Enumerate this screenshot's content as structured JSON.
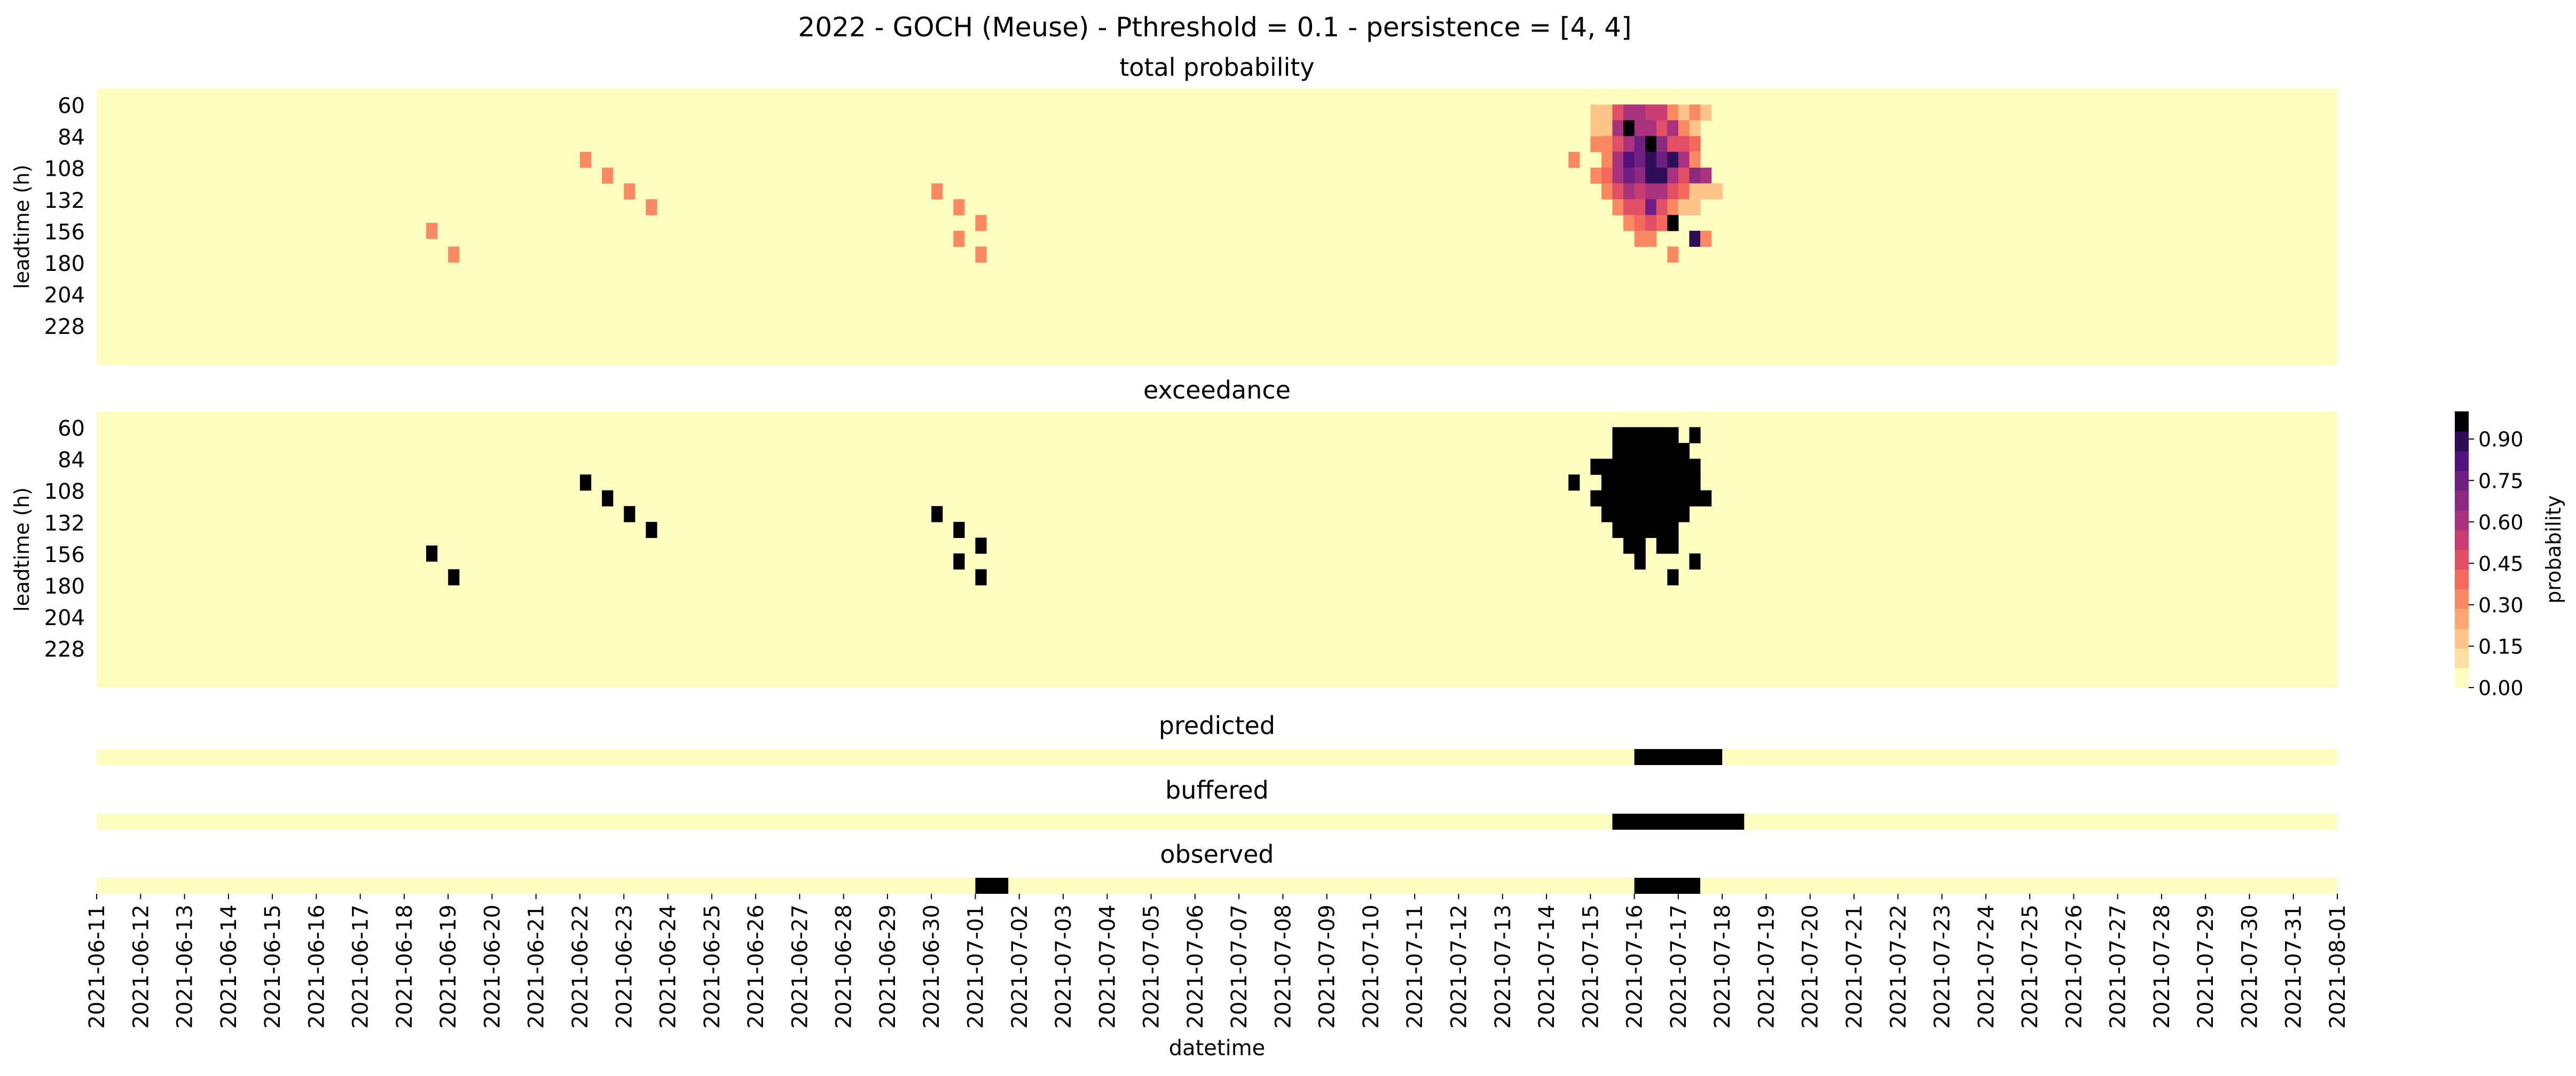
{
  "chart_data": {
    "type": "heatmap",
    "suptitle": "2022 - GOCH (Meuse) - Pthreshold = 0.1 - persistence = [4, 4]",
    "xlabel": "datetime",
    "ylabel": "leadtime (h)",
    "x_ticks": [
      "2021-06-11",
      "2021-06-12",
      "2021-06-13",
      "2021-06-14",
      "2021-06-15",
      "2021-06-16",
      "2021-06-17",
      "2021-06-18",
      "2021-06-19",
      "2021-06-20",
      "2021-06-21",
      "2021-06-22",
      "2021-06-23",
      "2021-06-24",
      "2021-06-25",
      "2021-06-26",
      "2021-06-27",
      "2021-06-28",
      "2021-06-29",
      "2021-06-30",
      "2021-07-01",
      "2021-07-02",
      "2021-07-03",
      "2021-07-04",
      "2021-07-05",
      "2021-07-06",
      "2021-07-07",
      "2021-07-08",
      "2021-07-09",
      "2021-07-10",
      "2021-07-11",
      "2021-07-12",
      "2021-07-13",
      "2021-07-14",
      "2021-07-15",
      "2021-07-16",
      "2021-07-17",
      "2021-07-18",
      "2021-07-19",
      "2021-07-20",
      "2021-07-21",
      "2021-07-22",
      "2021-07-23",
      "2021-07-24",
      "2021-07-25",
      "2021-07-26",
      "2021-07-27",
      "2021-07-28",
      "2021-07-29",
      "2021-07-30",
      "2021-07-31",
      "2021-08-01"
    ],
    "y_ticks": [
      "60",
      "84",
      "108",
      "132",
      "156",
      "180",
      "204",
      "228"
    ],
    "colors": {
      "background": "#fcfdbf",
      "exceed": "#000000",
      "scale": [
        "#fcfdbf",
        "#fde0a1",
        "#fec488",
        "#fea772",
        "#fc8961",
        "#f4695c",
        "#e24f64",
        "#c83e73",
        "#a8327d",
        "#8c2981",
        "#6e1f81",
        "#51127c",
        "#2e0e57",
        "#000004"
      ]
    },
    "colorbar": {
      "label": "probability",
      "ticks": [
        "0.00",
        "0.15",
        "0.30",
        "0.45",
        "0.60",
        "0.75",
        "0.90"
      ],
      "range": [
        0,
        1
      ]
    },
    "panels": [
      {
        "title": "total probability",
        "kind": "probability",
        "cells": [
          [
            "2021-06-18 12:00",
            150,
            0.3
          ],
          [
            "2021-06-19 00:00",
            168,
            0.3
          ],
          [
            "2021-06-22 00:00",
            96,
            0.3
          ],
          [
            "2021-06-22 12:00",
            108,
            0.3
          ],
          [
            "2021-06-23 00:00",
            120,
            0.3
          ],
          [
            "2021-06-23 12:00",
            132,
            0.3
          ],
          [
            "2021-06-30 00:00",
            120,
            0.3
          ],
          [
            "2021-06-30 12:00",
            132,
            0.3
          ],
          [
            "2021-06-30 12:00",
            156,
            0.3
          ],
          [
            "2021-07-01 00:00",
            144,
            0.3
          ],
          [
            "2021-07-01 00:00",
            168,
            0.3
          ],
          [
            "2021-07-14 12:00",
            96,
            0.3
          ],
          [
            "2021-07-15 00:00",
            84,
            0.3
          ],
          [
            "2021-07-15 00:00",
            108,
            0.3
          ],
          [
            "2021-07-15 00:00",
            60,
            0.1
          ],
          [
            "2021-07-15 00:00",
            72,
            0.1
          ],
          [
            "2021-07-15 06:00",
            60,
            0.12
          ],
          [
            "2021-07-15 06:00",
            72,
            0.15
          ],
          [
            "2021-07-15 06:00",
            84,
            0.3
          ],
          [
            "2021-07-15 06:00",
            96,
            0.3
          ],
          [
            "2021-07-15 06:00",
            108,
            0.35
          ],
          [
            "2021-07-15 06:00",
            120,
            0.3
          ],
          [
            "2021-07-15 12:00",
            60,
            0.45
          ],
          [
            "2021-07-15 12:00",
            72,
            0.55
          ],
          [
            "2021-07-15 12:00",
            84,
            0.45
          ],
          [
            "2021-07-15 12:00",
            96,
            0.6
          ],
          [
            "2021-07-15 12:00",
            108,
            0.55
          ],
          [
            "2021-07-15 12:00",
            120,
            0.4
          ],
          [
            "2021-07-15 12:00",
            132,
            0.3
          ],
          [
            "2021-07-15 18:00",
            60,
            0.6
          ],
          [
            "2021-07-15 18:00",
            72,
            0.95
          ],
          [
            "2021-07-15 18:00",
            84,
            0.6
          ],
          [
            "2021-07-15 18:00",
            96,
            0.8
          ],
          [
            "2021-07-15 18:00",
            108,
            0.75
          ],
          [
            "2021-07-15 18:00",
            120,
            0.6
          ],
          [
            "2021-07-15 18:00",
            132,
            0.4
          ],
          [
            "2021-07-15 18:00",
            144,
            0.3
          ],
          [
            "2021-07-16 00:00",
            60,
            0.55
          ],
          [
            "2021-07-16 00:00",
            72,
            0.6
          ],
          [
            "2021-07-16 00:00",
            84,
            0.7
          ],
          [
            "2021-07-16 00:00",
            96,
            0.75
          ],
          [
            "2021-07-16 00:00",
            108,
            0.65
          ],
          [
            "2021-07-16 00:00",
            120,
            0.5
          ],
          [
            "2021-07-16 00:00",
            132,
            0.45
          ],
          [
            "2021-07-16 00:00",
            144,
            0.35
          ],
          [
            "2021-07-16 00:00",
            156,
            0.3
          ],
          [
            "2021-07-16 06:00",
            60,
            0.5
          ],
          [
            "2021-07-16 06:00",
            72,
            0.6
          ],
          [
            "2021-07-16 06:00",
            84,
            0.95
          ],
          [
            "2021-07-16 06:00",
            96,
            0.85
          ],
          [
            "2021-07-16 06:00",
            108,
            0.9
          ],
          [
            "2021-07-16 06:00",
            120,
            0.6
          ],
          [
            "2021-07-16 06:00",
            132,
            0.75
          ],
          [
            "2021-07-16 06:00",
            144,
            0.4
          ],
          [
            "2021-07-16 06:00",
            156,
            0.3
          ],
          [
            "2021-07-16 12:00",
            60,
            0.5
          ],
          [
            "2021-07-16 12:00",
            72,
            0.45
          ],
          [
            "2021-07-16 12:00",
            84,
            0.65
          ],
          [
            "2021-07-16 12:00",
            96,
            0.75
          ],
          [
            "2021-07-16 12:00",
            108,
            0.85
          ],
          [
            "2021-07-16 12:00",
            120,
            0.55
          ],
          [
            "2021-07-16 12:00",
            132,
            0.45
          ],
          [
            "2021-07-16 12:00",
            144,
            0.35
          ],
          [
            "2021-07-16 18:00",
            60,
            0.3
          ],
          [
            "2021-07-16 18:00",
            72,
            0.55
          ],
          [
            "2021-07-16 18:00",
            84,
            0.4
          ],
          [
            "2021-07-16 18:00",
            96,
            0.9
          ],
          [
            "2021-07-16 18:00",
            108,
            0.6
          ],
          [
            "2021-07-16 18:00",
            120,
            0.45
          ],
          [
            "2021-07-16 18:00",
            132,
            0.3
          ],
          [
            "2021-07-16 18:00",
            144,
            0.95
          ],
          [
            "2021-07-16 18:00",
            168,
            0.3
          ],
          [
            "2021-07-17 00:00",
            60,
            0.15
          ],
          [
            "2021-07-17 00:00",
            72,
            0.3
          ],
          [
            "2021-07-17 00:00",
            84,
            0.45
          ],
          [
            "2021-07-17 00:00",
            96,
            0.55
          ],
          [
            "2021-07-17 00:00",
            108,
            0.4
          ],
          [
            "2021-07-17 00:00",
            120,
            0.35
          ],
          [
            "2021-07-17 00:00",
            132,
            0.1
          ],
          [
            "2021-07-17 06:00",
            60,
            0.3
          ],
          [
            "2021-07-17 06:00",
            72,
            0.15
          ],
          [
            "2021-07-17 06:00",
            84,
            0.35
          ],
          [
            "2021-07-17 06:00",
            96,
            0.3
          ],
          [
            "2021-07-17 06:00",
            108,
            0.65
          ],
          [
            "2021-07-17 06:00",
            120,
            0.15
          ],
          [
            "2021-07-17 06:00",
            132,
            0.1
          ],
          [
            "2021-07-17 06:00",
            156,
            0.9
          ],
          [
            "2021-07-17 12:00",
            60,
            0.08
          ],
          [
            "2021-07-17 12:00",
            108,
            0.55
          ],
          [
            "2021-07-17 12:00",
            120,
            0.15
          ],
          [
            "2021-07-17 12:00",
            156,
            0.3
          ],
          [
            "2021-07-17 18:00",
            120,
            0.1
          ]
        ]
      },
      {
        "title": "exceedance",
        "kind": "binary",
        "cells": [
          [
            "2021-06-18 12:00",
            150,
            1
          ],
          [
            "2021-06-19 00:00",
            168,
            1
          ],
          [
            "2021-06-22 00:00",
            96,
            1
          ],
          [
            "2021-06-22 12:00",
            108,
            1
          ],
          [
            "2021-06-23 00:00",
            120,
            1
          ],
          [
            "2021-06-23 12:00",
            132,
            1
          ],
          [
            "2021-06-30 00:00",
            120,
            1
          ],
          [
            "2021-06-30 12:00",
            132,
            1
          ],
          [
            "2021-06-30 12:00",
            156,
            1
          ],
          [
            "2021-07-01 00:00",
            144,
            1
          ],
          [
            "2021-07-01 00:00",
            168,
            1
          ],
          [
            "2021-07-14 12:00",
            96,
            1
          ],
          [
            "2021-07-15 00:00",
            84,
            1
          ],
          [
            "2021-07-15 00:00",
            108,
            1
          ],
          [
            "2021-07-15 06:00",
            84,
            1
          ],
          [
            "2021-07-15 06:00",
            96,
            1
          ],
          [
            "2021-07-15 06:00",
            108,
            1
          ],
          [
            "2021-07-15 06:00",
            120,
            1
          ],
          [
            "2021-07-15 12:00",
            60,
            1
          ],
          [
            "2021-07-15 12:00",
            72,
            1
          ],
          [
            "2021-07-15 12:00",
            84,
            1
          ],
          [
            "2021-07-15 12:00",
            96,
            1
          ],
          [
            "2021-07-15 12:00",
            108,
            1
          ],
          [
            "2021-07-15 12:00",
            120,
            1
          ],
          [
            "2021-07-15 12:00",
            132,
            1
          ],
          [
            "2021-07-15 18:00",
            60,
            1
          ],
          [
            "2021-07-15 18:00",
            72,
            1
          ],
          [
            "2021-07-15 18:00",
            84,
            1
          ],
          [
            "2021-07-15 18:00",
            96,
            1
          ],
          [
            "2021-07-15 18:00",
            108,
            1
          ],
          [
            "2021-07-15 18:00",
            120,
            1
          ],
          [
            "2021-07-15 18:00",
            132,
            1
          ],
          [
            "2021-07-15 18:00",
            144,
            1
          ],
          [
            "2021-07-16 00:00",
            60,
            1
          ],
          [
            "2021-07-16 00:00",
            72,
            1
          ],
          [
            "2021-07-16 00:00",
            84,
            1
          ],
          [
            "2021-07-16 00:00",
            96,
            1
          ],
          [
            "2021-07-16 00:00",
            108,
            1
          ],
          [
            "2021-07-16 00:00",
            120,
            1
          ],
          [
            "2021-07-16 00:00",
            132,
            1
          ],
          [
            "2021-07-16 00:00",
            144,
            1
          ],
          [
            "2021-07-16 00:00",
            156,
            1
          ],
          [
            "2021-07-16 06:00",
            60,
            1
          ],
          [
            "2021-07-16 06:00",
            72,
            1
          ],
          [
            "2021-07-16 06:00",
            84,
            1
          ],
          [
            "2021-07-16 06:00",
            96,
            1
          ],
          [
            "2021-07-16 06:00",
            108,
            1
          ],
          [
            "2021-07-16 06:00",
            120,
            1
          ],
          [
            "2021-07-16 06:00",
            132,
            1
          ],
          [
            "2021-07-16 12:00",
            60,
            1
          ],
          [
            "2021-07-16 12:00",
            72,
            1
          ],
          [
            "2021-07-16 12:00",
            84,
            1
          ],
          [
            "2021-07-16 12:00",
            96,
            1
          ],
          [
            "2021-07-16 12:00",
            108,
            1
          ],
          [
            "2021-07-16 12:00",
            120,
            1
          ],
          [
            "2021-07-16 12:00",
            132,
            1
          ],
          [
            "2021-07-16 12:00",
            144,
            1
          ],
          [
            "2021-07-16 18:00",
            60,
            1
          ],
          [
            "2021-07-16 18:00",
            72,
            1
          ],
          [
            "2021-07-16 18:00",
            84,
            1
          ],
          [
            "2021-07-16 18:00",
            96,
            1
          ],
          [
            "2021-07-16 18:00",
            108,
            1
          ],
          [
            "2021-07-16 18:00",
            120,
            1
          ],
          [
            "2021-07-16 18:00",
            132,
            1
          ],
          [
            "2021-07-16 18:00",
            144,
            1
          ],
          [
            "2021-07-16 18:00",
            168,
            1
          ],
          [
            "2021-07-17 00:00",
            72,
            1
          ],
          [
            "2021-07-17 00:00",
            84,
            1
          ],
          [
            "2021-07-17 00:00",
            96,
            1
          ],
          [
            "2021-07-17 00:00",
            108,
            1
          ],
          [
            "2021-07-17 00:00",
            120,
            1
          ],
          [
            "2021-07-17 06:00",
            60,
            1
          ],
          [
            "2021-07-17 06:00",
            84,
            1
          ],
          [
            "2021-07-17 06:00",
            96,
            1
          ],
          [
            "2021-07-17 06:00",
            108,
            1
          ],
          [
            "2021-07-17 06:00",
            156,
            1
          ],
          [
            "2021-07-17 12:00",
            108,
            1
          ]
        ]
      },
      {
        "title": "predicted",
        "kind": "strip",
        "intervals": [
          [
            "2021-07-16 00:00",
            "2021-07-18 00:00"
          ]
        ]
      },
      {
        "title": "buffered",
        "kind": "strip",
        "intervals": [
          [
            "2021-07-15 12:00",
            "2021-07-18 12:00"
          ]
        ]
      },
      {
        "title": "observed",
        "kind": "strip",
        "intervals": [
          [
            "2021-07-01 00:00",
            "2021-07-01 18:00"
          ],
          [
            "2021-07-16 00:00",
            "2021-07-17 12:00"
          ]
        ]
      }
    ]
  }
}
